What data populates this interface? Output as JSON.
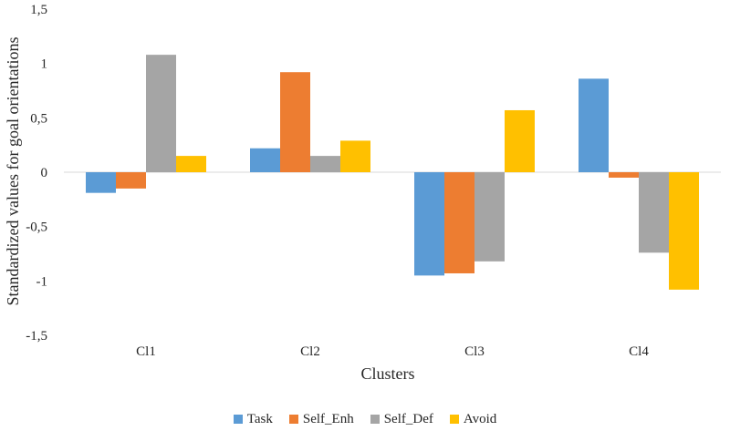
{
  "chart_data": {
    "type": "bar",
    "title": "",
    "xlabel": "Clusters",
    "ylabel": "Standardized values for goal orientations",
    "categories": [
      "Cl1",
      "Cl2",
      "Cl3",
      "Cl4"
    ],
    "ylim": [
      -1.5,
      1.5
    ],
    "yticks": [
      1.5,
      1,
      0.5,
      0,
      -0.5,
      -1,
      -1.5
    ],
    "ytick_labels": [
      "1,5",
      "1",
      "0,5",
      "0",
      "-0,5",
      "-1",
      "-1,5"
    ],
    "grid": false,
    "legend_position": "bottom",
    "series": [
      {
        "name": "Task",
        "color": "#5B9BD5",
        "values": [
          -0.19,
          0.22,
          -0.95,
          0.86
        ]
      },
      {
        "name": "Self_Enh",
        "color": "#ED7D31",
        "values": [
          -0.15,
          0.92,
          -0.93,
          -0.05
        ]
      },
      {
        "name": "Self_Def",
        "color": "#A5A5A5",
        "values": [
          1.08,
          0.15,
          -0.82,
          -0.74
        ]
      },
      {
        "name": "Avoid",
        "color": "#FFC000",
        "values": [
          0.15,
          0.29,
          0.57,
          -1.08
        ]
      }
    ]
  }
}
